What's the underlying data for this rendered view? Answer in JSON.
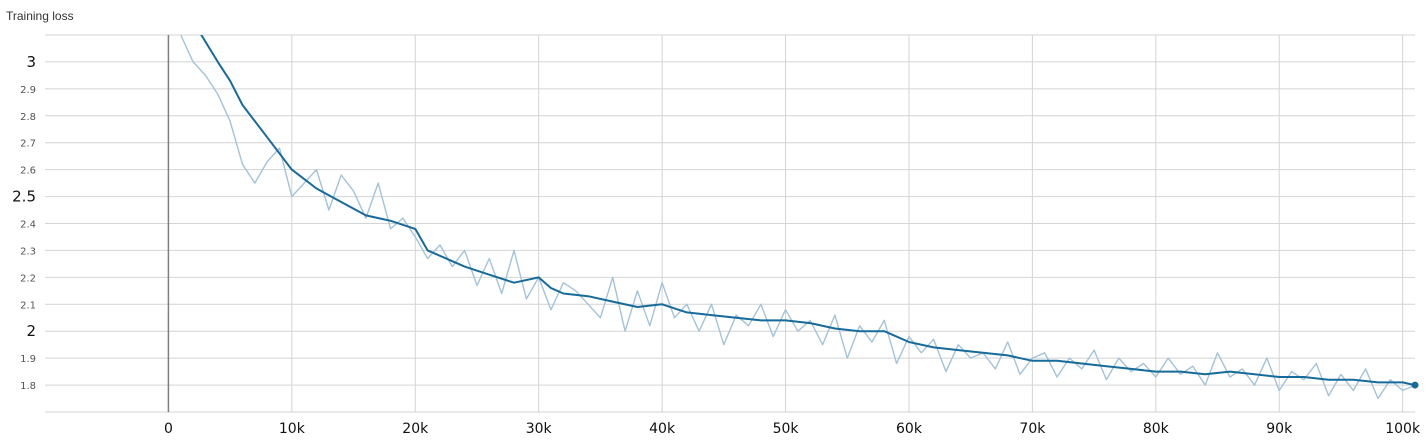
{
  "chart_title": "Training loss",
  "colors": {
    "raw_series": "#a3c3da",
    "smoothed_series": "#176b9a",
    "grid": "#d4d4d4",
    "zero_line": "#7f7f7f"
  },
  "chart_data": {
    "type": "line",
    "title": "Training loss",
    "xlabel": "",
    "ylabel": "",
    "xlim": [
      -10000,
      101000
    ],
    "ylim": [
      1.7,
      3.1
    ],
    "grid": true,
    "x_ticks": [
      {
        "value": 0,
        "label": "0"
      },
      {
        "value": 10000,
        "label": "10k"
      },
      {
        "value": 20000,
        "label": "20k"
      },
      {
        "value": 30000,
        "label": "30k"
      },
      {
        "value": 40000,
        "label": "40k"
      },
      {
        "value": 50000,
        "label": "50k"
      },
      {
        "value": 60000,
        "label": "60k"
      },
      {
        "value": 70000,
        "label": "70k"
      },
      {
        "value": 80000,
        "label": "80k"
      },
      {
        "value": 90000,
        "label": "90k"
      },
      {
        "value": 100000,
        "label": "100k"
      }
    ],
    "y_ticks": [
      {
        "value": 3.0,
        "label": "3",
        "major": true
      },
      {
        "value": 2.9,
        "label": "2.9",
        "major": false
      },
      {
        "value": 2.8,
        "label": "2.8",
        "major": false
      },
      {
        "value": 2.7,
        "label": "2.7",
        "major": false
      },
      {
        "value": 2.6,
        "label": "2.6",
        "major": false
      },
      {
        "value": 2.5,
        "label": "2.5",
        "major": true
      },
      {
        "value": 2.4,
        "label": "2.4",
        "major": false
      },
      {
        "value": 2.3,
        "label": "2.3",
        "major": false
      },
      {
        "value": 2.2,
        "label": "2.2",
        "major": false
      },
      {
        "value": 2.1,
        "label": "2.1",
        "major": false
      },
      {
        "value": 2.0,
        "label": "2",
        "major": true
      },
      {
        "value": 1.9,
        "label": "1.9",
        "major": false
      },
      {
        "value": 1.8,
        "label": "1.8",
        "major": false
      }
    ],
    "series": [
      {
        "name": "raw",
        "x": [
          1000,
          2000,
          3000,
          4000,
          5000,
          6000,
          7000,
          8000,
          9000,
          10000,
          11000,
          12000,
          13000,
          14000,
          15000,
          16000,
          17000,
          18000,
          19000,
          20000,
          21000,
          22000,
          23000,
          24000,
          25000,
          26000,
          27000,
          28000,
          29000,
          30000,
          31000,
          32000,
          33000,
          34000,
          35000,
          36000,
          37000,
          38000,
          39000,
          40000,
          41000,
          42000,
          43000,
          44000,
          45000,
          46000,
          47000,
          48000,
          49000,
          50000,
          51000,
          52000,
          53000,
          54000,
          55000,
          56000,
          57000,
          58000,
          59000,
          60000,
          61000,
          62000,
          63000,
          64000,
          65000,
          66000,
          67000,
          68000,
          69000,
          70000,
          71000,
          72000,
          73000,
          74000,
          75000,
          76000,
          77000,
          78000,
          79000,
          80000,
          81000,
          82000,
          83000,
          84000,
          85000,
          86000,
          87000,
          88000,
          89000,
          90000,
          91000,
          92000,
          93000,
          94000,
          95000,
          96000,
          97000,
          98000,
          99000,
          100000,
          101000
        ],
        "values": [
          3.1,
          3.0,
          2.95,
          2.88,
          2.78,
          2.62,
          2.55,
          2.63,
          2.68,
          2.5,
          2.55,
          2.6,
          2.45,
          2.58,
          2.52,
          2.42,
          2.55,
          2.38,
          2.42,
          2.35,
          2.27,
          2.32,
          2.24,
          2.3,
          2.17,
          2.27,
          2.14,
          2.3,
          2.12,
          2.2,
          2.08,
          2.18,
          2.15,
          2.1,
          2.05,
          2.2,
          2.0,
          2.15,
          2.02,
          2.18,
          2.05,
          2.1,
          2.0,
          2.1,
          1.95,
          2.06,
          2.02,
          2.1,
          1.98,
          2.08,
          2.0,
          2.04,
          1.95,
          2.06,
          1.9,
          2.02,
          1.96,
          2.04,
          1.88,
          1.98,
          1.92,
          1.97,
          1.85,
          1.95,
          1.9,
          1.92,
          1.86,
          1.96,
          1.84,
          1.9,
          1.92,
          1.83,
          1.9,
          1.86,
          1.93,
          1.82,
          1.9,
          1.85,
          1.88,
          1.83,
          1.9,
          1.84,
          1.87,
          1.8,
          1.92,
          1.83,
          1.86,
          1.8,
          1.9,
          1.78,
          1.85,
          1.82,
          1.88,
          1.76,
          1.84,
          1.78,
          1.86,
          1.75,
          1.82,
          1.78,
          1.8
        ]
      },
      {
        "name": "smoothed",
        "x": [
          2000,
          4000,
          5000,
          6000,
          8000,
          10000,
          12000,
          14000,
          16000,
          18000,
          20000,
          21000,
          22000,
          24000,
          26000,
          28000,
          30000,
          31000,
          32000,
          34000,
          36000,
          38000,
          40000,
          42000,
          44000,
          46000,
          48000,
          50000,
          52000,
          54000,
          56000,
          58000,
          60000,
          62000,
          64000,
          66000,
          68000,
          70000,
          72000,
          74000,
          76000,
          78000,
          80000,
          82000,
          84000,
          86000,
          88000,
          90000,
          92000,
          94000,
          96000,
          98000,
          100000,
          101000
        ],
        "values": [
          3.15,
          3.0,
          2.93,
          2.84,
          2.72,
          2.6,
          2.53,
          2.48,
          2.43,
          2.41,
          2.38,
          2.3,
          2.28,
          2.24,
          2.21,
          2.18,
          2.2,
          2.16,
          2.14,
          2.13,
          2.11,
          2.09,
          2.1,
          2.07,
          2.06,
          2.05,
          2.04,
          2.04,
          2.03,
          2.01,
          2.0,
          2.0,
          1.96,
          1.94,
          1.93,
          1.92,
          1.91,
          1.89,
          1.89,
          1.88,
          1.87,
          1.86,
          1.85,
          1.85,
          1.84,
          1.85,
          1.84,
          1.83,
          1.83,
          1.82,
          1.82,
          1.81,
          1.81,
          1.8
        ]
      }
    ]
  }
}
